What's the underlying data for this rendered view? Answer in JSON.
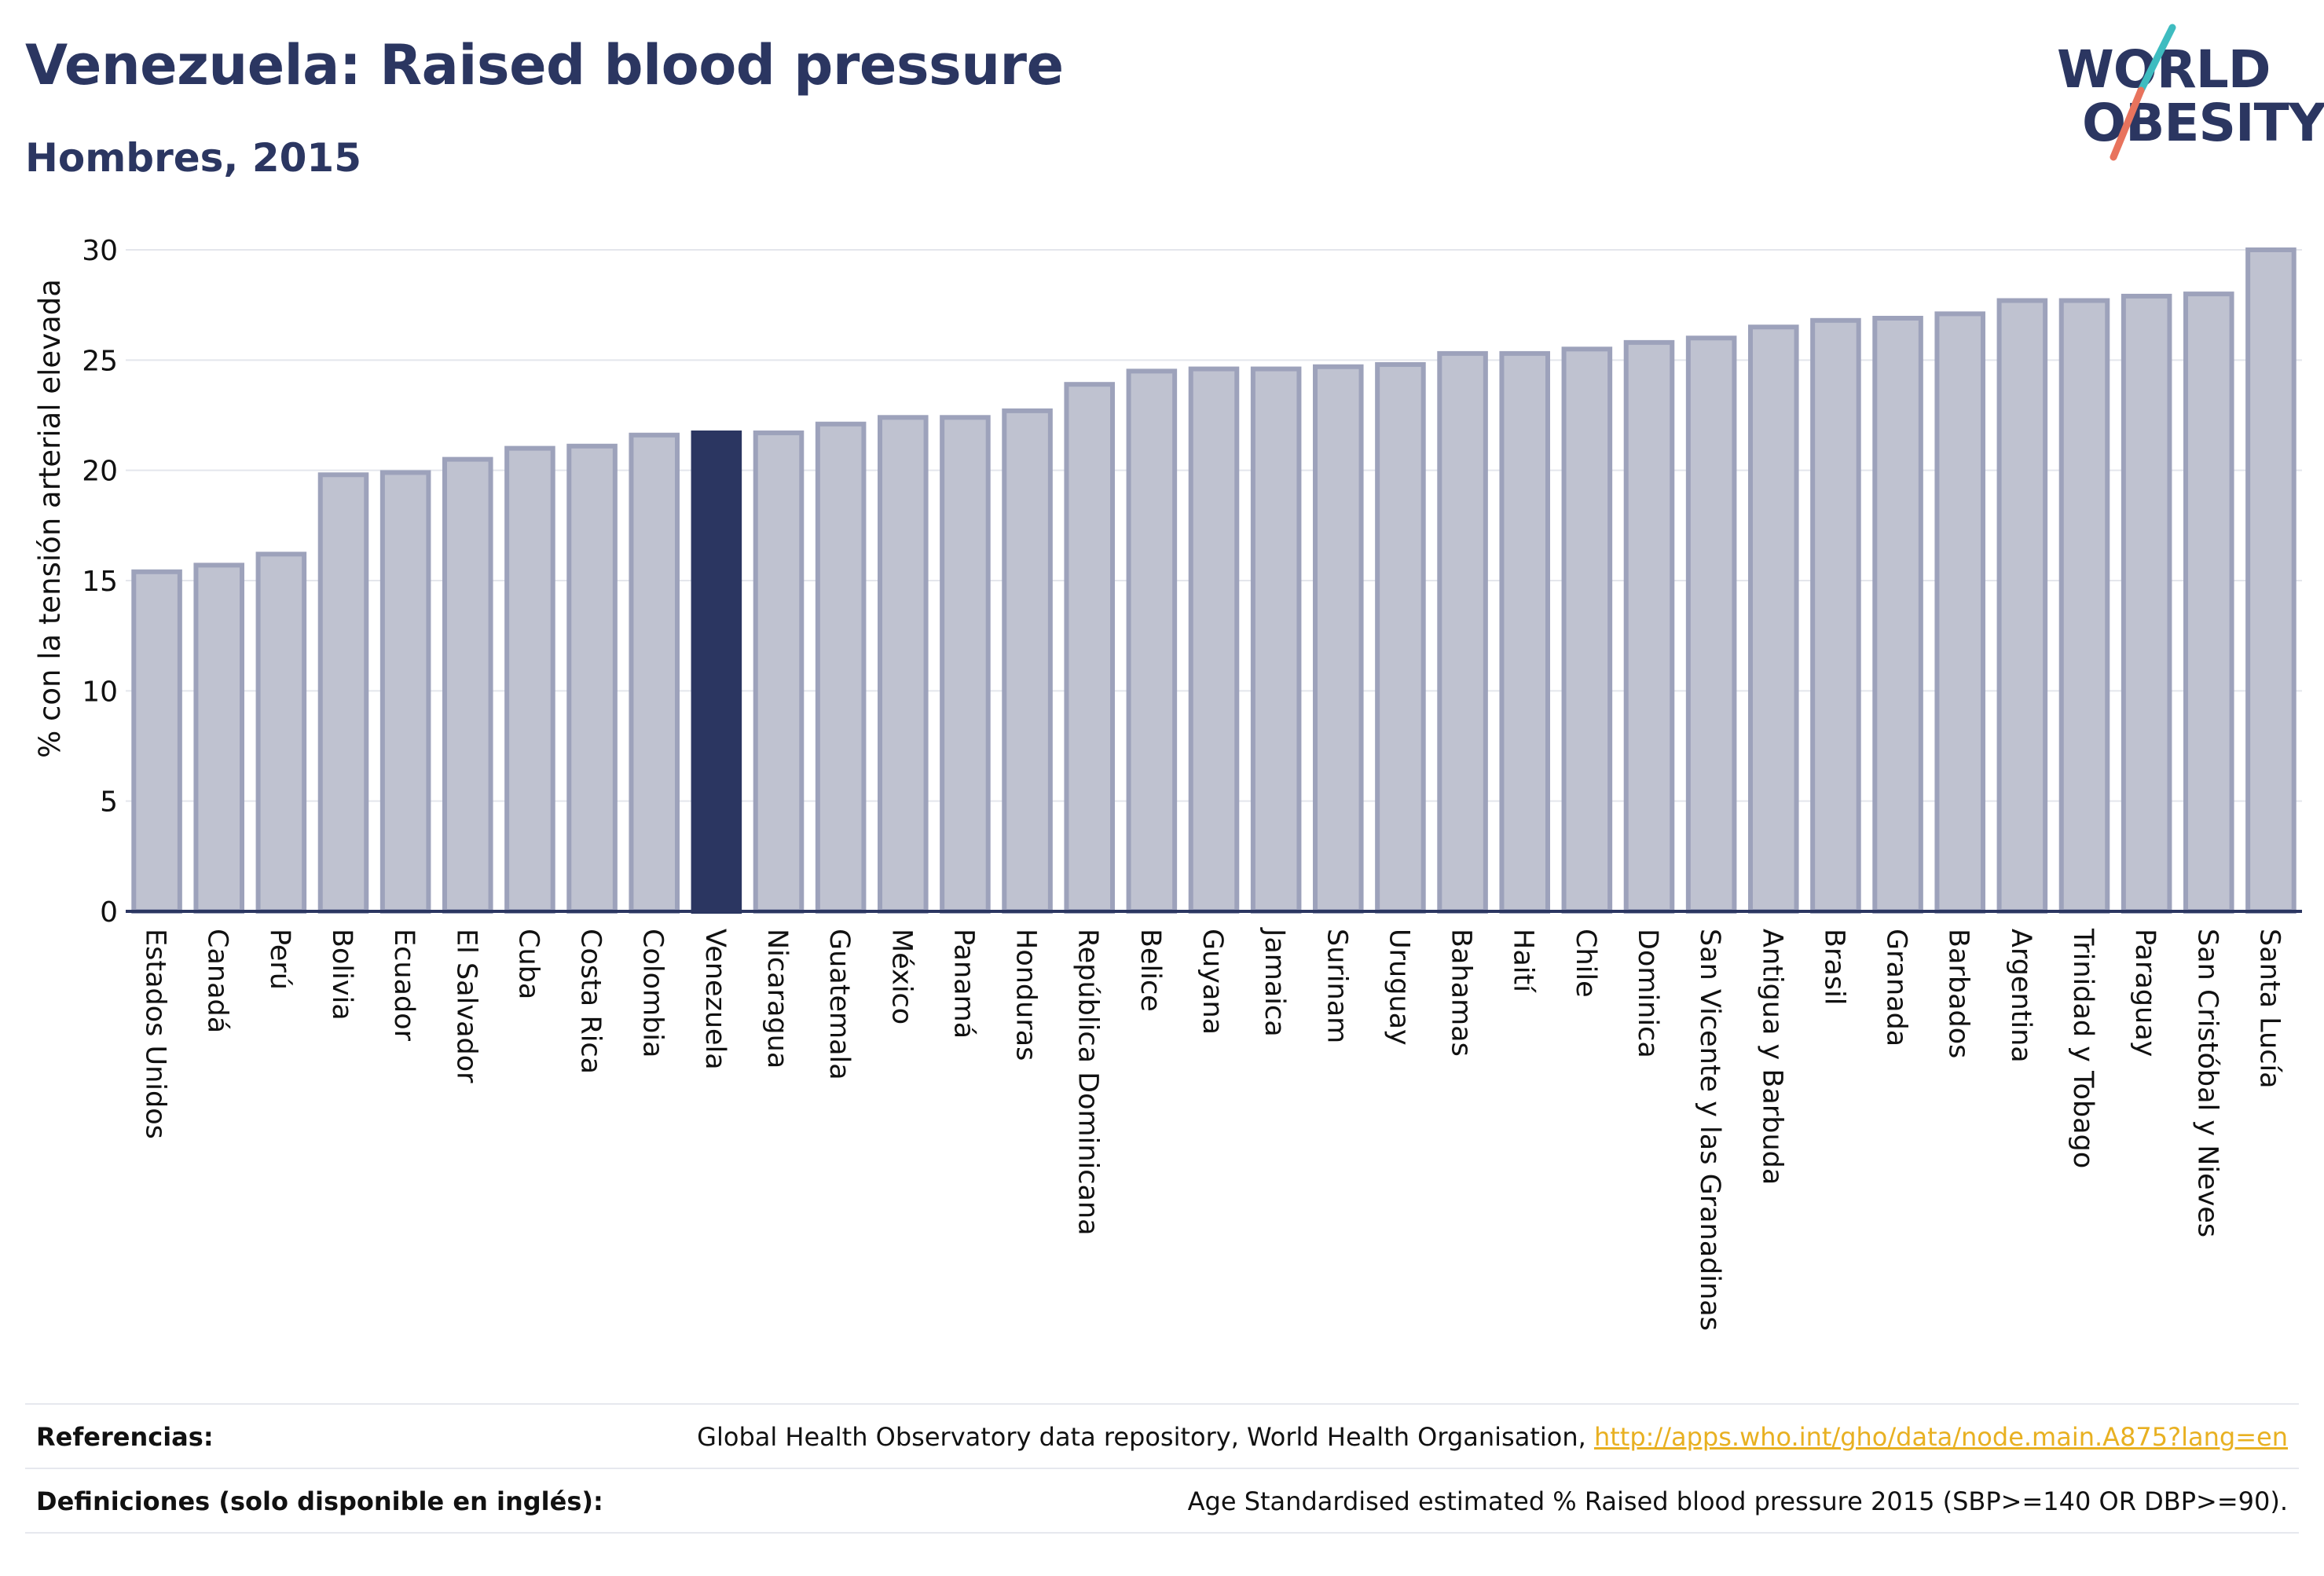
{
  "header": {
    "title": "Venezuela: Raised blood pressure",
    "subtitle": "Hombres, 2015"
  },
  "logo": {
    "line1": "WORLD",
    "line2": "OBESITY"
  },
  "colors": {
    "bar": "#bfc2d0",
    "bar_stroke": "#9da2bb",
    "highlight": "#2b3661",
    "grid": "#e4e6ec",
    "logo_navy": "#2b3661",
    "logo_teal": "#3ebcc0",
    "logo_coral": "#e8735d",
    "link": "#e8b021"
  },
  "chart_data": {
    "type": "bar",
    "title": "Venezuela: Raised blood pressure",
    "subtitle": "Hombres, 2015",
    "xlabel": "",
    "ylabel": "% con la tensión arterial elevada",
    "ylim": [
      0,
      30
    ],
    "yticks": [
      0,
      5,
      10,
      15,
      20,
      25,
      30
    ],
    "grid": true,
    "highlight": "Venezuela",
    "categories": [
      "Estados Unidos",
      "Canadá",
      "Perú",
      "Bolivia",
      "Ecuador",
      "El Salvador",
      "Cuba",
      "Costa Rica",
      "Colombia",
      "Venezuela",
      "Nicaragua",
      "Guatemala",
      "México",
      "Panamá",
      "Honduras",
      "República Dominicana",
      "Belice",
      "Guyana",
      "Jamaica",
      "Surinam",
      "Uruguay",
      "Bahamas",
      "Haití",
      "Chile",
      "Dominica",
      "San Vicente y las Granadinas",
      "Antigua y Barbuda",
      "Brasil",
      "Granada",
      "Barbados",
      "Argentina",
      "Trinidad y Tobago",
      "Paraguay",
      "San Cristóbal y Nieves",
      "Santa Lucía"
    ],
    "values": [
      15.4,
      15.7,
      16.2,
      19.8,
      19.9,
      20.5,
      21.0,
      21.1,
      21.6,
      21.7,
      21.7,
      22.1,
      22.4,
      22.4,
      22.7,
      23.9,
      24.5,
      24.6,
      24.6,
      24.7,
      24.8,
      25.3,
      25.3,
      25.5,
      25.8,
      26.0,
      26.5,
      26.8,
      26.9,
      27.1,
      27.7,
      27.7,
      27.9,
      28.0,
      30.0
    ]
  },
  "footer": {
    "references_label": "Referencias:",
    "references_text": "Global Health Observatory data repository, World Health Organisation, ",
    "references_link": "http://apps.who.int/gho/data/node.main.A875?lang=en",
    "definitions_label": "Definiciones (solo disponible en inglés):",
    "definitions_text": "Age Standardised estimated % Raised blood pressure 2015 (SBP>=140 OR DBP>=90)."
  }
}
